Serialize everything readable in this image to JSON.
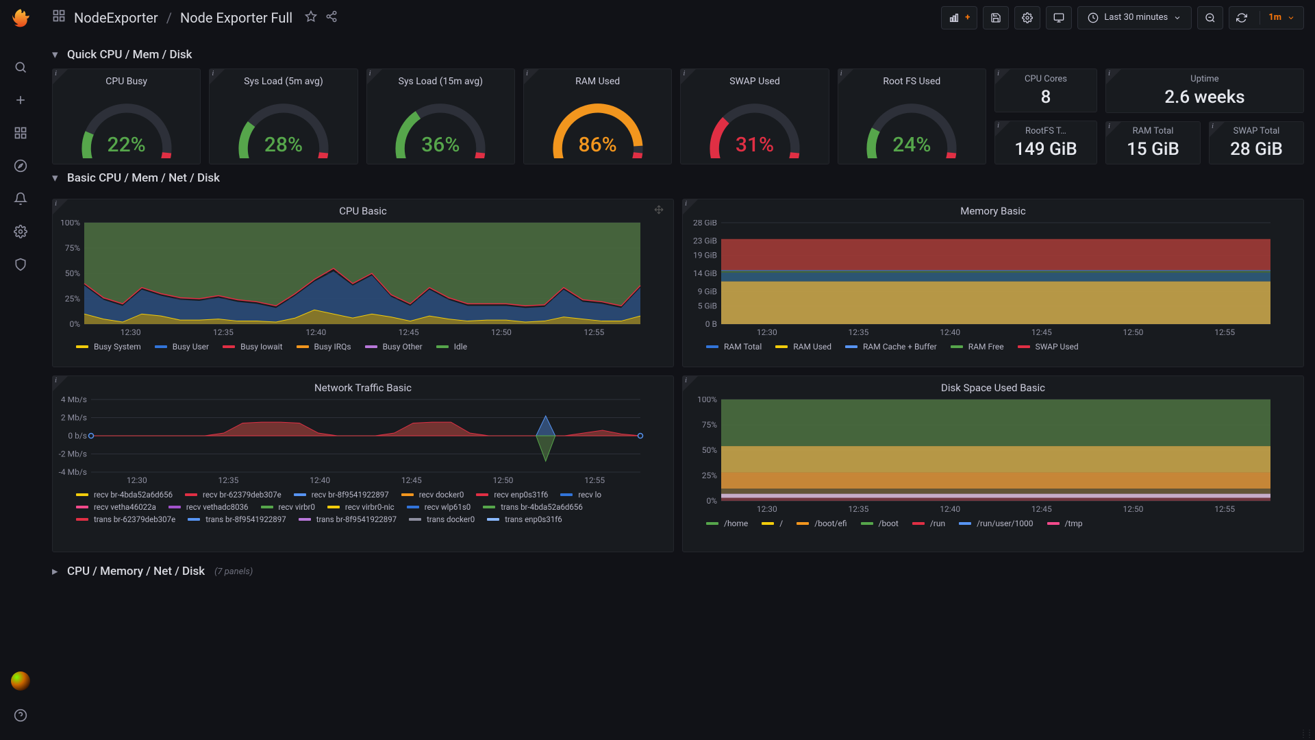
{
  "breadcrumb": {
    "folder": "NodeExporter",
    "dashboard": "Node Exporter Full"
  },
  "time_range_label": "Last 30 minutes",
  "refresh_interval": "1m",
  "sections": {
    "quick": "Quick CPU / Mem / Disk",
    "basic": "Basic CPU / Mem / Net / Disk",
    "collapsed": "CPU / Memory / Net / Disk",
    "collapsed_count": "(7 panels)"
  },
  "gauges": [
    {
      "title": "CPU Busy",
      "value": "22%",
      "percent": 22,
      "color": "#56a64b"
    },
    {
      "title": "Sys Load (5m avg)",
      "value": "28%",
      "percent": 28,
      "color": "#56a64b"
    },
    {
      "title": "Sys Load (15m avg)",
      "value": "36%",
      "percent": 36,
      "color": "#56a64b"
    },
    {
      "title": "RAM Used",
      "value": "86%",
      "percent": 86,
      "color": "#f2961e"
    },
    {
      "title": "SWAP Used",
      "value": "31%",
      "percent": 31,
      "color": "#e02f44"
    },
    {
      "title": "Root FS Used",
      "value": "24%",
      "percent": 24,
      "color": "#56a64b"
    }
  ],
  "gauge_style": {
    "track_color": "#2d3039",
    "hot_color": "#e02f44",
    "stroke_width": 14
  },
  "stats": {
    "cpu_cores": {
      "title": "CPU Cores",
      "value": "8"
    },
    "rootfs": {
      "title": "RootFS T…",
      "value": "149 GiB"
    },
    "uptime": {
      "title": "Uptime",
      "value": "2.6 weeks"
    },
    "ram_total": {
      "title": "RAM Total",
      "value": "15 GiB"
    },
    "swap_total": {
      "title": "SWAP Total",
      "value": "28 GiB"
    }
  },
  "time_axis": [
    "12:30",
    "12:35",
    "12:40",
    "12:45",
    "12:50",
    "12:55"
  ],
  "cpu_basic": {
    "title": "CPU Basic",
    "y_ticks": [
      "0%",
      "25%",
      "50%",
      "75%",
      "100%"
    ],
    "ylim": [
      0,
      100
    ],
    "background_color": "#181b1f",
    "idle_fill": "#4a6b3f",
    "series": [
      {
        "name": "Busy System",
        "color": "#f2cc0c",
        "values": [
          10,
          5,
          2,
          10,
          8,
          4,
          4,
          5,
          3,
          3,
          2,
          6,
          14,
          10,
          6,
          10,
          7,
          3,
          8,
          5,
          3,
          4,
          4,
          2,
          3,
          7,
          5,
          3,
          3,
          8
        ]
      },
      {
        "name": "Busy User",
        "color": "#3274d9",
        "values": [
          38,
          24,
          18,
          34,
          28,
          24,
          23,
          26,
          22,
          20,
          16,
          28,
          42,
          52,
          38,
          48,
          27,
          18,
          34,
          24,
          18,
          18,
          18,
          16,
          17,
          34,
          22,
          20,
          16,
          36
        ]
      },
      {
        "name": "Busy Iowait",
        "color": "#e02f44",
        "values": [
          40,
          26,
          20,
          36,
          30,
          26,
          25,
          28,
          24,
          22,
          18,
          30,
          44,
          55,
          40,
          50,
          29,
          20,
          36,
          26,
          20,
          20,
          20,
          18,
          19,
          36,
          24,
          22,
          18,
          38
        ]
      },
      {
        "name": "Busy IRQs",
        "color": "#f2961e"
      },
      {
        "name": "Busy Other",
        "color": "#b877d9"
      },
      {
        "name": "Idle",
        "color": "#56a64b"
      }
    ]
  },
  "memory_basic": {
    "title": "Memory Basic",
    "y_labels": [
      "0 B",
      "5 GiB",
      "9 GiB",
      "14 GiB",
      "19 GiB",
      "23 GiB",
      "28 GiB"
    ],
    "y_ticks": [
      0,
      5,
      9,
      14,
      19,
      23,
      28
    ],
    "ylim": [
      0,
      28
    ],
    "bands": [
      {
        "name": "RAM Used",
        "color": "#c4a24a",
        "from": 0,
        "to": 11.8
      },
      {
        "name": "RAM Cache + Buffer",
        "color": "#2f5a7a",
        "from": 11.8,
        "to": 14.2
      },
      {
        "name": "RAM Free",
        "color": "#4a6b3f",
        "from": 14.2,
        "to": 14.8
      },
      {
        "name": "SWAP Used",
        "color": "#9e3a36",
        "from": 14.8,
        "to": 23.5
      },
      {
        "name": "RAM Total",
        "color": "#3274d9",
        "from": 14.7,
        "to": 14.9
      }
    ],
    "legend": [
      {
        "name": "RAM Total",
        "color": "#3274d9"
      },
      {
        "name": "RAM Used",
        "color": "#f2cc0c"
      },
      {
        "name": "RAM Cache + Buffer",
        "color": "#5794f2"
      },
      {
        "name": "RAM Free",
        "color": "#56a64b"
      },
      {
        "name": "SWAP Used",
        "color": "#e02f44"
      }
    ]
  },
  "network_basic": {
    "title": "Network Traffic Basic",
    "y_labels": [
      "-4 Mb/s",
      "-2 Mb/s",
      "0 b/s",
      "2 Mb/s",
      "4 Mb/s"
    ],
    "y_ticks": [
      -4,
      -2,
      0,
      2,
      4
    ],
    "legend": [
      {
        "name": "recv br-4bda52a6d656",
        "color": "#f2cc0c"
      },
      {
        "name": "recv br-62379deb307e",
        "color": "#e02f44"
      },
      {
        "name": "recv br-8f9541922897",
        "color": "#5794f2"
      },
      {
        "name": "recv docker0",
        "color": "#f2961e"
      },
      {
        "name": "recv enp0s31f6",
        "color": "#e02f44"
      },
      {
        "name": "recv lo",
        "color": "#3274d9"
      },
      {
        "name": "recv vetha46022a",
        "color": "#f24a8b"
      },
      {
        "name": "recv vethadc8036",
        "color": "#a352cc"
      },
      {
        "name": "recv virbr0",
        "color": "#56a64b"
      },
      {
        "name": "recv virbr0-nic",
        "color": "#f2cc0c"
      },
      {
        "name": "recv wlp61s0",
        "color": "#3274d9"
      },
      {
        "name": "trans br-4bda52a6d656",
        "color": "#56a64b"
      },
      {
        "name": "trans br-62379deb307e",
        "color": "#e02f44"
      },
      {
        "name": "trans br-8f9541922897",
        "color": "#5794f2"
      },
      {
        "name": "trans br-8f9541922897",
        "color": "#b877d9"
      },
      {
        "name": "trans docker0",
        "color": "#8e8fa0"
      },
      {
        "name": "trans enp0s31f6",
        "color": "#8ab8ff"
      }
    ]
  },
  "disk_basic": {
    "title": "Disk Space Used Basic",
    "y_ticks": [
      "0%",
      "25%",
      "50%",
      "75%",
      "100%"
    ],
    "bands": [
      {
        "color": "#4a6b3f",
        "from": 54,
        "to": 100
      },
      {
        "color": "#c4a24a",
        "from": 28,
        "to": 54
      },
      {
        "color": "#d68f3a",
        "from": 12,
        "to": 28
      },
      {
        "color": "#6a5a3a",
        "from": 7,
        "to": 12
      },
      {
        "color": "#d7b8d8",
        "from": 3,
        "to": 7
      },
      {
        "color": "#7a3a42",
        "from": 0,
        "to": 3
      }
    ],
    "legend": [
      {
        "name": "/home",
        "color": "#56a64b"
      },
      {
        "name": "/",
        "color": "#f2cc0c"
      },
      {
        "name": "/boot/efi",
        "color": "#f2961e"
      },
      {
        "name": "/boot",
        "color": "#56a64b"
      },
      {
        "name": "/run",
        "color": "#e02f44"
      },
      {
        "name": "/run/user/1000",
        "color": "#5794f2"
      },
      {
        "name": "/tmp",
        "color": "#f24a8b"
      }
    ]
  }
}
